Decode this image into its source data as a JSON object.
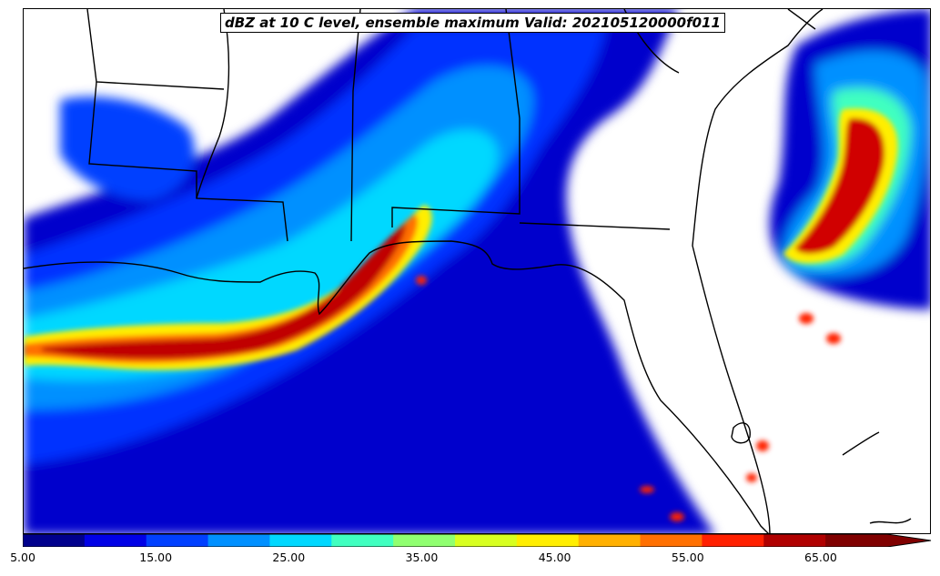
{
  "title": "dBZ at 10 C level, ensemble maximum Valid: 202105120000f011",
  "colorbar": {
    "levels": [
      5,
      10,
      15,
      20,
      25,
      30,
      35,
      40,
      45,
      50,
      55,
      60,
      65,
      70
    ],
    "colors": [
      "#00008c",
      "#0000e6",
      "#0040ff",
      "#0090ff",
      "#00d8ff",
      "#40ffc0",
      "#90ff70",
      "#d8ff20",
      "#ffee00",
      "#ffb000",
      "#ff7000",
      "#ff2000",
      "#b00000",
      "#800000"
    ],
    "tick_labels": [
      "5.00",
      "15.00",
      "25.00",
      "35.00",
      "45.00",
      "55.00",
      "65.00"
    ],
    "extend": "max"
  },
  "map": {
    "region": "Gulf Coast / Southeast US",
    "features": [
      "state-borders",
      "coastlines",
      "reflectivity-field"
    ]
  }
}
